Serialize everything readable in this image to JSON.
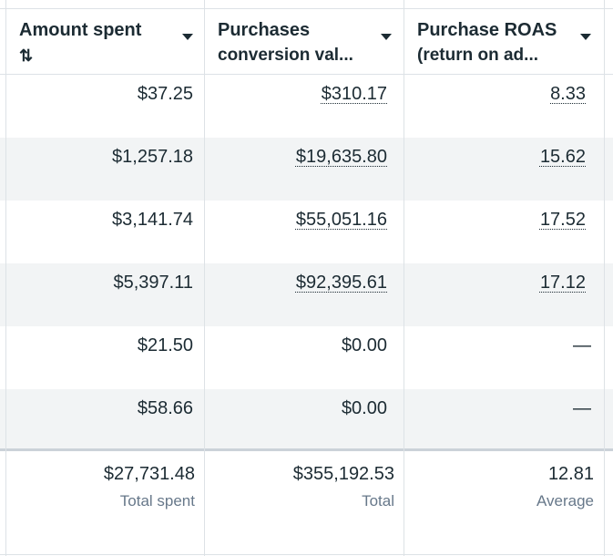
{
  "header": {
    "col1_title": "Amount spent",
    "col1_sort_icon": "⇅",
    "col2_title_line1": "Purchases",
    "col2_title_line2": "conversion val...",
    "col3_title_line1": "Purchase ROAS",
    "col3_title_line2": "(return on ad..."
  },
  "rows": [
    {
      "amount_spent": "$37.25",
      "conversion_value": "$310.17",
      "roas": "8.33"
    },
    {
      "amount_spent": "$1,257.18",
      "conversion_value": "$19,635.80",
      "roas": "15.62"
    },
    {
      "amount_spent": "$3,141.74",
      "conversion_value": "$55,051.16",
      "roas": "17.52"
    },
    {
      "amount_spent": "$5,397.11",
      "conversion_value": "$92,395.61",
      "roas": "17.12"
    },
    {
      "amount_spent": "$21.50",
      "conversion_value": "$0.00",
      "roas": "—"
    },
    {
      "amount_spent": "$58.66",
      "conversion_value": "$0.00",
      "roas": "—"
    }
  ],
  "footer": {
    "total_spent": "$27,731.48",
    "total_spent_label": "Total spent",
    "total_value": "$355,192.53",
    "total_value_label": "Total",
    "average_roas": "12.81",
    "average_roas_label": "Average"
  },
  "colors": {
    "border": "#dde2e6",
    "alt_row": "#f2f4f5",
    "text": "#1c2b33",
    "muted": "#67788a"
  }
}
